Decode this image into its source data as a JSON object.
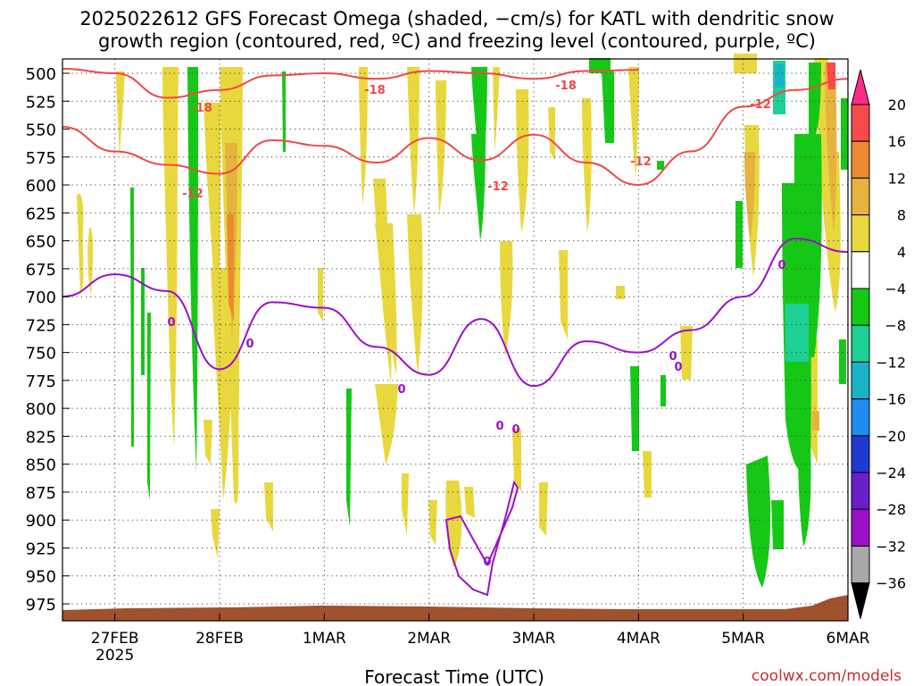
{
  "title_line1": "2025022612 GFS Forecast Omega (shaded, −cm/s) for KATL with dendritic snow",
  "title_line2": "growth region (contoured, red, ºC) and freezing level (contoured, purple, ºC)",
  "x_axis_label": "Forecast Time (UTC)",
  "credit": "coolwx.com/models",
  "chart_data": {
    "type": "heatmap",
    "x_ticks": [
      "27FEB",
      "28FEB",
      "1MAR",
      "2MAR",
      "3MAR",
      "4MAR",
      "5MAR",
      "6MAR"
    ],
    "x_tick_sublabel": "2025",
    "x_range": [
      "2025-02-26T12Z",
      "2025-03-06T00Z"
    ],
    "y_axis_levels_hPa": [
      500,
      525,
      550,
      575,
      600,
      625,
      650,
      675,
      700,
      725,
      750,
      775,
      800,
      825,
      850,
      875,
      900,
      925,
      950,
      975
    ],
    "ylim": [
      497,
      995
    ],
    "grid": "dotted",
    "colorbar": {
      "labels": [
        "20",
        "16",
        "12",
        "8",
        "4",
        "−4",
        "−8",
        "−12",
        "−16",
        "−20",
        "−24",
        "−28",
        "−32",
        "−36"
      ],
      "colors": [
        "#ff2a8a",
        "#f74a4a",
        "#ee8a32",
        "#e6b43c",
        "#e8d83e",
        "#ffffff",
        "#16c816",
        "#1ecf96",
        "#17b4c8",
        "#1e8cf0",
        "#1f3ad0",
        "#6a1ec8",
        "#9a10c8",
        "#a8a8a8",
        "#000000"
      ]
    },
    "red_contour_labels": [
      "-18",
      "-18",
      "-18",
      "-12",
      "-12",
      "-12",
      "-12"
    ],
    "purple_contour_labels": [
      "0",
      "0",
      "0",
      "0",
      "0",
      "0",
      "0",
      "0",
      "0"
    ],
    "series": [
      {
        "name": "freezing level (0 ºC)",
        "color": "#9a10c8",
        "x": [
          "2025-02-26T12Z",
          "2025-02-27T00Z",
          "2025-02-27T12Z",
          "2025-02-28T00Z",
          "2025-02-28T12Z",
          "2025-03-01T00Z",
          "2025-03-01T12Z",
          "2025-03-02T00Z",
          "2025-03-02T12Z",
          "2025-03-03T00Z",
          "2025-03-03T12Z",
          "2025-03-04T00Z",
          "2025-03-04T12Z",
          "2025-03-05T00Z",
          "2025-03-05T12Z",
          "2025-03-06T00Z"
        ],
        "pressure_hPa": [
          700,
          680,
          695,
          765,
          705,
          710,
          745,
          770,
          720,
          780,
          740,
          750,
          730,
          700,
          648,
          660
        ]
      },
      {
        "name": "-12 ºC isotherm",
        "color": "#f04848",
        "x": [
          "2025-02-26T12Z",
          "2025-02-27T00Z",
          "2025-02-27T12Z",
          "2025-02-28T00Z",
          "2025-02-28T12Z",
          "2025-03-01T00Z",
          "2025-03-01T12Z",
          "2025-03-02T00Z",
          "2025-03-02T12Z",
          "2025-03-03T00Z",
          "2025-03-03T12Z",
          "2025-03-04T00Z",
          "2025-03-04T12Z",
          "2025-03-05T00Z",
          "2025-03-05T12Z",
          "2025-03-06T00Z"
        ],
        "pressure_hPa": [
          548,
          570,
          582,
          590,
          560,
          565,
          580,
          558,
          578,
          555,
          580,
          600,
          570,
          530,
          515,
          505
        ]
      },
      {
        "name": "-18 ºC isotherm",
        "color": "#f04848",
        "x": [
          "2025-02-26T12Z",
          "2025-02-27T00Z",
          "2025-02-27T12Z",
          "2025-02-28T00Z",
          "2025-02-28T12Z",
          "2025-03-01T00Z",
          "2025-03-01T12Z",
          "2025-03-02T00Z",
          "2025-03-02T12Z",
          "2025-03-03T00Z",
          "2025-03-03T12Z",
          "2025-03-04T00Z"
        ],
        "pressure_hPa": [
          496,
          500,
          522,
          515,
          502,
          500,
          505,
          498,
          500,
          505,
          498,
          497
        ]
      }
    ]
  }
}
